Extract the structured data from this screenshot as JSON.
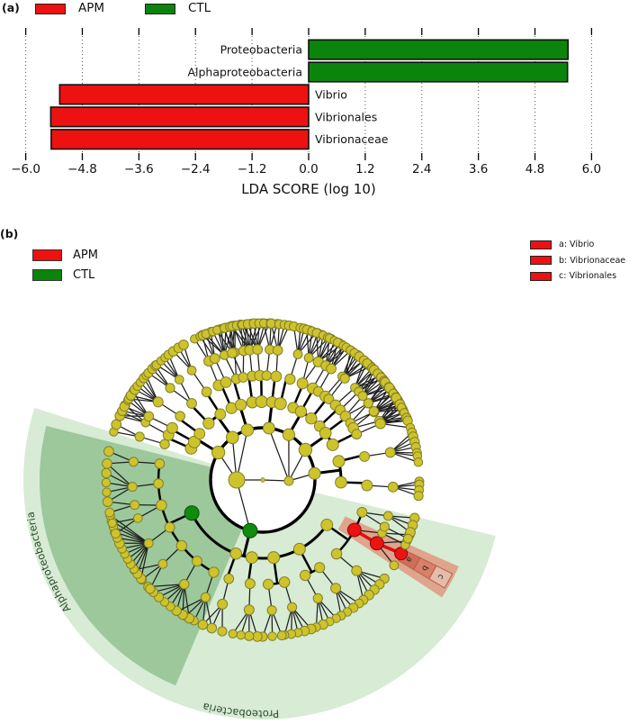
{
  "panel_a": {
    "tag": "(a)",
    "legend": {
      "items": [
        {
          "label": "APM",
          "color": "#ee1111"
        },
        {
          "label": "CTL",
          "color": "#0b840b"
        }
      ]
    },
    "xlabel": "LDA SCORE (log 10)"
  },
  "panel_b": {
    "tag": "(b)",
    "legend": {
      "items": [
        {
          "label": "APM",
          "color": "#ee1111"
        },
        {
          "label": "CTL",
          "color": "#0b840b"
        }
      ]
    },
    "taxa_legend": {
      "swatch_color": "#ee1111",
      "items": [
        {
          "key": "a",
          "label": "a: Vibrio"
        },
        {
          "key": "b",
          "label": "b: Vibrionaceae"
        },
        {
          "key": "c",
          "label": "c: Vibrionales"
        }
      ]
    }
  },
  "chart_data": [
    {
      "type": "bar",
      "orientation": "horizontal",
      "title": "",
      "xlabel": "LDA SCORE (log 10)",
      "ylabel": "",
      "categories": [
        "Proteobacteria",
        "Alphaproteobacteria",
        "Vibrio",
        "Vibrionales",
        "Vibrionaceae"
      ],
      "values": [
        5.5,
        5.49,
        -5.28,
        -5.47,
        -5.46
      ],
      "bar_groups": [
        "CTL",
        "CTL",
        "APM",
        "APM",
        "APM"
      ],
      "group_colors": {
        "APM": "#ee1111",
        "CTL": "#0b840b"
      },
      "xlim": [
        -6.0,
        6.0
      ],
      "xticks": [
        -6.0,
        -4.8,
        -3.6,
        -2.4,
        -1.2,
        0.0,
        1.2,
        2.4,
        3.6,
        4.8,
        6.0
      ],
      "xtick_labels": [
        "−6.0",
        "−4.8",
        "−3.6",
        "−2.4",
        "−1.2",
        "0.0",
        "1.2",
        "2.4",
        "3.6",
        "4.8",
        "6.0"
      ],
      "grid": "dotted-vertical",
      "legend_position": "top-left"
    },
    {
      "type": "cladogram",
      "node_default_color": "#cfc32b",
      "rings": {
        "radii": [
          29,
          58,
          87,
          116,
          145,
          174
        ]
      },
      "highlighted_nodes": [
        {
          "name": "Proteobacteria",
          "group": "CTL",
          "color": "#0e8c0e",
          "ring": 2,
          "angle_deg": 104
        },
        {
          "name": "Alphaproteobacteria",
          "group": "CTL",
          "color": "#0e8c0e",
          "ring": 3,
          "angle_deg": 155
        },
        {
          "name": "Vibrionales",
          "group": "APM",
          "color": "#ef1212",
          "ring": 4,
          "angle_deg": 28.6,
          "letter": "c"
        },
        {
          "name": "Vibrionaceae",
          "group": "APM",
          "color": "#ef1212",
          "ring": 5,
          "angle_deg": 29,
          "letter": "b"
        },
        {
          "name": "Vibrio",
          "group": "APM",
          "color": "#ef1212",
          "ring": 6,
          "angle_deg": 28,
          "letter": "a"
        }
      ],
      "sectors": [
        {
          "name": "proteobacteria-sector",
          "label": "Proteobacteria",
          "fill": "#d7ebd5",
          "angle_start": 13.5,
          "angle_end": 197.5,
          "r_inner": 58,
          "r_outer": 266,
          "label_start_angle": 86
        },
        {
          "name": "alphaproteobacteria-sector",
          "label": "Alphaproteobacteria",
          "fill": "#9cc89c",
          "angle_start": 113,
          "angle_end": 194,
          "r_inner": 58,
          "r_outer": 248,
          "label_start_angle": 146
        },
        {
          "name": "vibrio-branch-wedge",
          "label": "",
          "fill": "#e09279",
          "angle_start": 23.8,
          "angle_end": 33.2,
          "r_inner": 100,
          "r_outer": 238
        }
      ],
      "letter_markers": [
        {
          "letter": "a",
          "radius": 185
        },
        {
          "letter": "b",
          "radius": 205
        },
        {
          "letter": "c",
          "radius": 225
        }
      ]
    }
  ]
}
